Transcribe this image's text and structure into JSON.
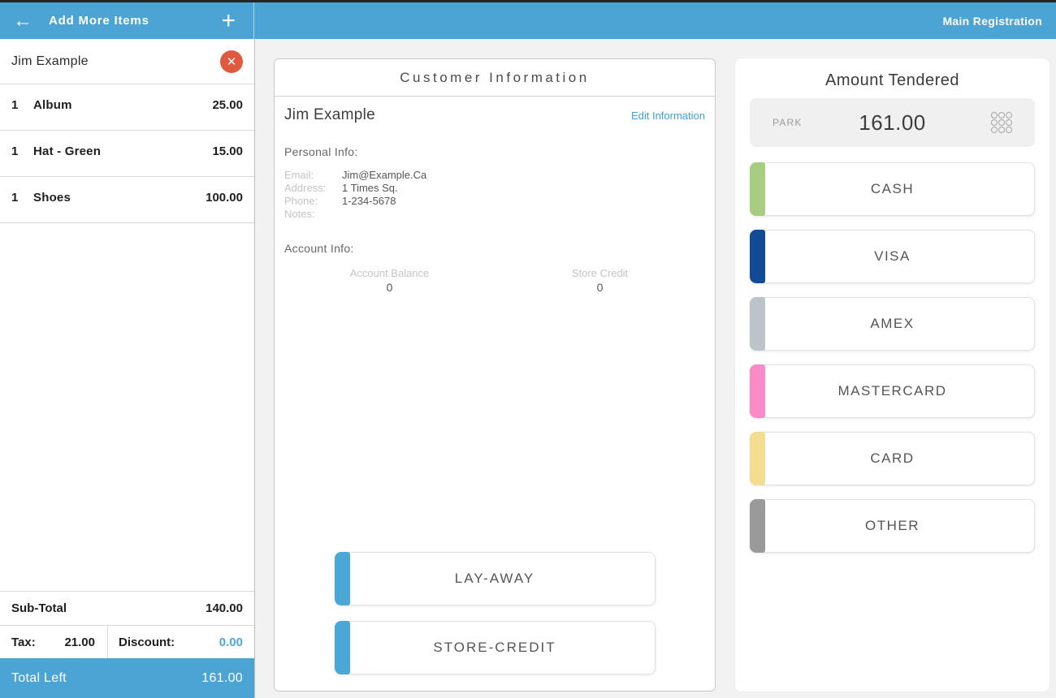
{
  "header": {
    "left_title": "Add More Items",
    "right_title": "Main Registration",
    "icons": {
      "back": "←",
      "plus": "+",
      "close": "✕"
    }
  },
  "cart": {
    "customer_name": "Jim Example",
    "items": [
      {
        "qty": "1",
        "name": "Album",
        "price": "25.00"
      },
      {
        "qty": "1",
        "name": "Hat - Green",
        "price": "15.00"
      },
      {
        "qty": "1",
        "name": "Shoes",
        "price": "100.00"
      }
    ],
    "subtotal_label": "Sub-Total",
    "subtotal_value": "140.00",
    "tax_label": "Tax:",
    "tax_value": "21.00",
    "discount_label": "Discount:",
    "discount_value": "0.00",
    "total_label": "Total Left",
    "total_value": "161.00"
  },
  "customer_info": {
    "title": "Customer Information",
    "name": "Jim Example",
    "edit_link": "Edit Information",
    "personal_info_label": "Personal Info:",
    "fields": [
      {
        "label": "Email:",
        "value": "Jim@Example.Ca"
      },
      {
        "label": "Address:",
        "value": "1 Times Sq."
      },
      {
        "label": "Phone:",
        "value": "1-234-5678"
      },
      {
        "label": "Notes:",
        "value": ""
      }
    ],
    "account_info_label": "Account Info:",
    "account_balance_label": "Account Balance",
    "account_balance_value": "0",
    "store_credit_label": "Store Credit",
    "store_credit_value": "0",
    "actions": [
      {
        "label": "LAY-AWAY",
        "color": "#4ba7d6"
      },
      {
        "label": "STORE-CREDIT",
        "color": "#4ba7d6"
      }
    ]
  },
  "tender": {
    "title": "Amount Tendered",
    "park_label": "PARK",
    "amount": "161.00",
    "payments": [
      {
        "label": "CASH",
        "color": "#a6cd80"
      },
      {
        "label": "VISA",
        "color": "#124a96"
      },
      {
        "label": "AMEX",
        "color": "#bcc3c9"
      },
      {
        "label": "MASTERCARD",
        "color": "#fa8bc6"
      },
      {
        "label": "CARD",
        "color": "#f3dd90"
      },
      {
        "label": "OTHER",
        "color": "#9a9a9a"
      }
    ]
  },
  "colors": {
    "accent_blue": "#4ba4d3",
    "link_blue": "#41a0dc",
    "danger_red": "#e0593f"
  }
}
